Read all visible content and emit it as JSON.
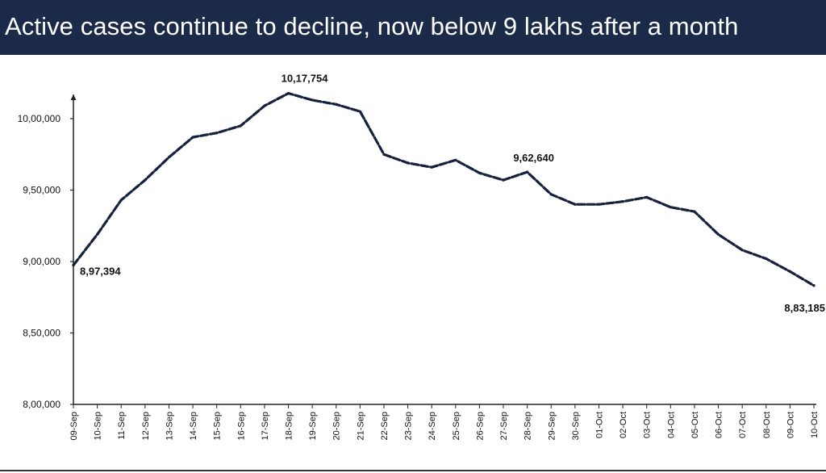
{
  "title": "Active cases continue to decline, now below 9 lakhs after a month",
  "colors": {
    "banner": "#1a2a48",
    "line": "#16213e",
    "axis": "#222222",
    "text": "#111111"
  },
  "chart_data": {
    "type": "line",
    "title": "Active cases continue to decline, now below 9 lakhs after a month",
    "xlabel": "",
    "ylabel": "",
    "grid": false,
    "legend": "none",
    "ylim": [
      800000,
      1030000
    ],
    "y_ticks": [
      800000,
      850000,
      900000,
      950000,
      1000000
    ],
    "y_tick_labels": [
      "8,00,000",
      "8,50,000",
      "9,00,000",
      "9,50,000",
      "10,00,000"
    ],
    "categories": [
      "09-Sep",
      "10-Sep",
      "11-Sep",
      "12-Sep",
      "13-Sep",
      "14-Sep",
      "15-Sep",
      "16-Sep",
      "17-Sep",
      "18-Sep",
      "19-Sep",
      "20-Sep",
      "21-Sep",
      "22-Sep",
      "23-Sep",
      "24-Sep",
      "25-Sep",
      "26-Sep",
      "27-Sep",
      "28-Sep",
      "29-Sep",
      "30-Sep",
      "01-Oct",
      "02-Oct",
      "03-Oct",
      "04-Oct",
      "05-Oct",
      "06-Oct",
      "07-Oct",
      "08-Oct",
      "09-Oct",
      "10-Oct"
    ],
    "series": [
      {
        "values": [
          897394,
          919000,
          943000,
          957000,
          973000,
          987000,
          990000,
          995000,
          1009000,
          1017754,
          1013000,
          1010000,
          1005000,
          975000,
          969000,
          966000,
          971000,
          962000,
          957000,
          962640,
          947000,
          940000,
          940000,
          942000,
          945000,
          938000,
          935000,
          919000,
          908000,
          902000,
          893000,
          883185
        ]
      }
    ],
    "annotations": [
      {
        "index": 0,
        "label": "8,97,394"
      },
      {
        "index": 9,
        "label": "10,17,754"
      },
      {
        "index": 19,
        "label": "9,62,640"
      },
      {
        "index": 31,
        "label": "8,83,185"
      }
    ]
  }
}
